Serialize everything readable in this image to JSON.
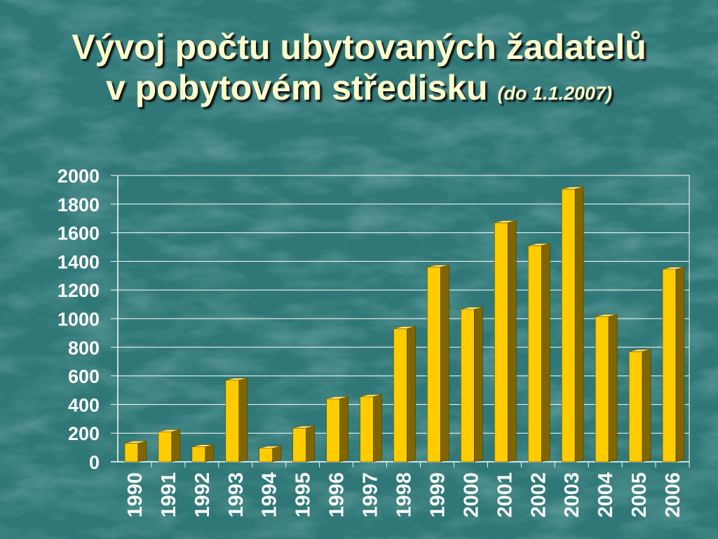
{
  "slide": {
    "title_line1": "Vývoj počtu ubytovaných žadatelů",
    "title_line2": "v pobytovém středisku",
    "title_note": "(do 1.1.2007)"
  },
  "colors": {
    "background": "#2f7877",
    "title_text": "#ffffcc",
    "bar_front": "#ffcc00",
    "bar_side": "#806600",
    "bar_top": "#ffe680",
    "grid": "#ffffff",
    "tick_text": "#ffffff"
  },
  "chart_data": {
    "type": "bar",
    "style": "3d-column",
    "title": "Vývoj počtu ubytovaných žadatelů v pobytovém středisku (do 1.1.2007)",
    "xlabel": "",
    "ylabel": "",
    "categories": [
      "1990",
      "1991",
      "1992",
      "1993",
      "1994",
      "1995",
      "1996",
      "1997",
      "1998",
      "1999",
      "2000",
      "2001",
      "2002",
      "2003",
      "2004",
      "2005",
      "2006"
    ],
    "values": [
      130,
      210,
      105,
      570,
      95,
      235,
      440,
      455,
      930,
      1360,
      1065,
      1670,
      1510,
      1905,
      1015,
      770,
      1345
    ],
    "ylim": [
      0,
      2000
    ],
    "yticks": [
      "0",
      "200",
      "400",
      "600",
      "800",
      "1000",
      "1200",
      "1400",
      "1600",
      "1800",
      "2000"
    ],
    "grid": true,
    "legend": "none"
  }
}
